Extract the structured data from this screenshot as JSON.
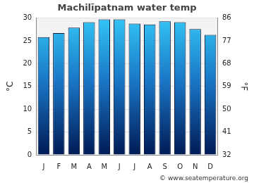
{
  "chart_data": {
    "type": "bar",
    "title": "Machilīpatnam water temp",
    "categories": [
      "J",
      "F",
      "M",
      "A",
      "M",
      "J",
      "J",
      "A",
      "S",
      "O",
      "N",
      "D"
    ],
    "values": [
      25.8,
      26.7,
      27.9,
      29.1,
      29.7,
      29.7,
      28.8,
      28.6,
      29.3,
      29.1,
      27.6,
      26.3
    ],
    "color": "#33c4f4",
    "y_label": "°C",
    "y2_label": "°F",
    "ylim": [
      0,
      30
    ],
    "yticks": [
      0,
      5,
      10,
      15,
      20,
      25,
      30
    ],
    "y2lim": [
      32,
      86
    ],
    "y2ticks": [
      32,
      41,
      50,
      59,
      68,
      77,
      86
    ],
    "grid": true,
    "annotation": "© www.seatemperature.org"
  }
}
